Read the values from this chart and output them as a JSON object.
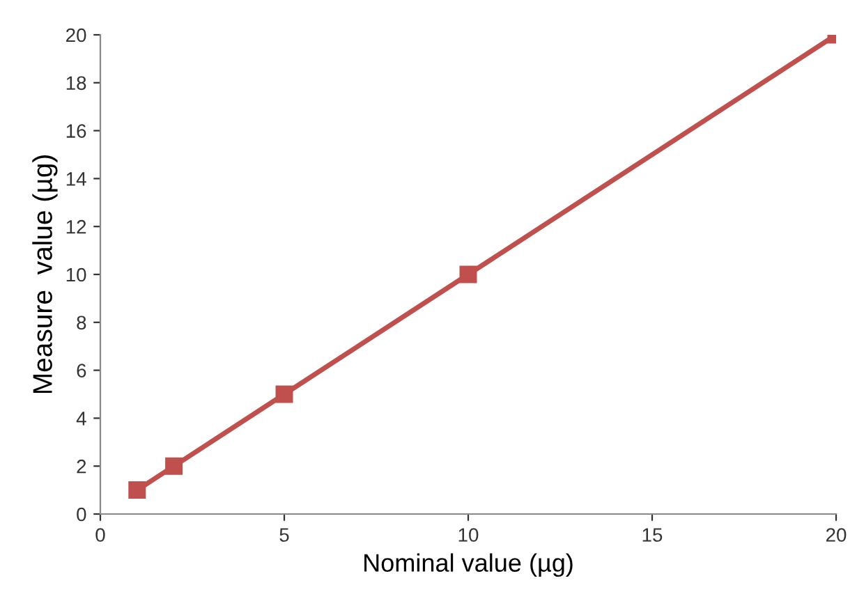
{
  "chart_data": {
    "type": "line",
    "xlabel": "Nominal value (µg)",
    "ylabel": "Measure  value (µg)",
    "x": [
      1,
      2,
      5,
      10,
      20
    ],
    "series": [
      {
        "color": "#c0504d",
        "values": [
          1,
          2,
          5,
          10,
          20
        ]
      }
    ],
    "xlim": [
      0,
      20
    ],
    "xticks": [
      0,
      5,
      10,
      15,
      20
    ],
    "ylim": [
      0,
      20
    ],
    "yticks": [
      0,
      2,
      4,
      6,
      8,
      10,
      12,
      14,
      16,
      18,
      20
    ],
    "grid": false,
    "legend": false,
    "marker": "square",
    "line_style": "solid"
  }
}
